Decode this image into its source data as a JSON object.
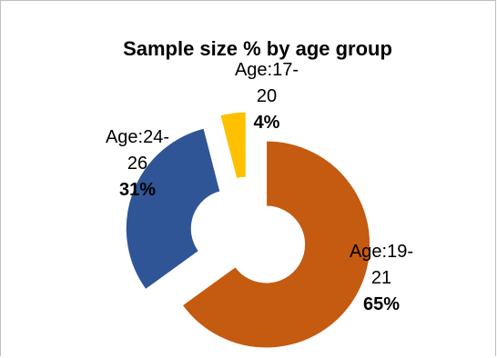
{
  "chart_data": {
    "type": "pie",
    "variant": "doughnut-exploded",
    "title": "Sample size % by age group",
    "categories": [
      "Age:19-21",
      "Age:24-26",
      "Age:17-20"
    ],
    "values": [
      65,
      31,
      4
    ],
    "labels": [
      {
        "category_lines": [
          "Age:19-",
          "21"
        ],
        "percent": "65%"
      },
      {
        "category_lines": [
          "Age:24-",
          "26"
        ],
        "percent": "31%"
      },
      {
        "category_lines": [
          "Age:17-",
          "20"
        ],
        "percent": "4%"
      }
    ],
    "colors": [
      "#C55A11",
      "#2F5597",
      "#FFC000"
    ],
    "legend": "none"
  }
}
